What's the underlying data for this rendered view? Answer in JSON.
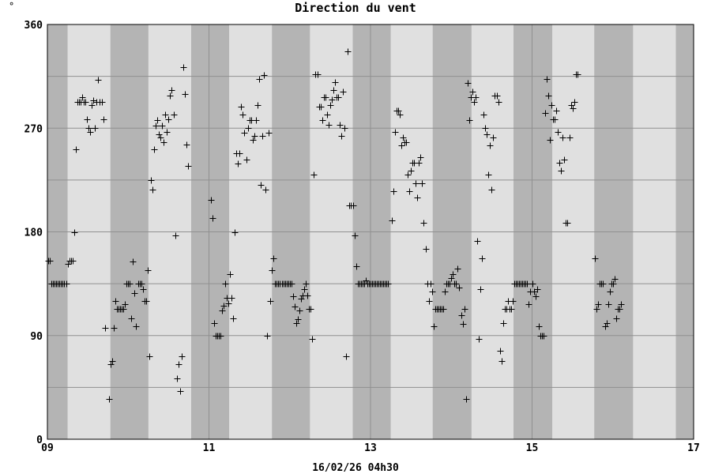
{
  "chart_data": {
    "type": "scatter",
    "title": "Direction du vent",
    "unit_mark": "°",
    "xlabel": "16/02/26 04h30",
    "ylabel": "",
    "xlim": [
      9,
      17
    ],
    "ylim": [
      0,
      360
    ],
    "x_ticks": [
      {
        "value": 9,
        "label": "09"
      },
      {
        "value": 11,
        "label": "11"
      },
      {
        "value": 13,
        "label": "13"
      },
      {
        "value": 15,
        "label": "15"
      },
      {
        "value": 17,
        "label": "17"
      }
    ],
    "y_ticks": [
      {
        "value": 0,
        "label": "0"
      },
      {
        "value": 90,
        "label": "90"
      },
      {
        "value": 180,
        "label": "180"
      },
      {
        "value": 270,
        "label": "270"
      },
      {
        "value": 360,
        "label": "360"
      }
    ],
    "y_minor_grid": [
      45,
      135,
      225,
      315
    ],
    "night_bands": [
      [
        9.0,
        9.25
      ],
      [
        9.78,
        10.25
      ],
      [
        10.78,
        11.25
      ],
      [
        11.78,
        12.25
      ],
      [
        12.78,
        13.25
      ],
      [
        13.77,
        14.25
      ],
      [
        14.77,
        15.25
      ],
      [
        15.77,
        16.25
      ],
      [
        16.78,
        17.0
      ]
    ],
    "colors": {
      "day": "#e0e0e0",
      "night": "#b4b4b4",
      "grid": "#909090",
      "marker": "#000000",
      "border": "#000000"
    },
    "grid": true,
    "marker": "+",
    "points": [
      [
        9.01,
        155
      ],
      [
        9.03,
        155
      ],
      [
        9.05,
        135
      ],
      [
        9.07,
        135
      ],
      [
        9.09,
        135
      ],
      [
        9.11,
        135
      ],
      [
        9.13,
        135
      ],
      [
        9.15,
        135
      ],
      [
        9.17,
        135
      ],
      [
        9.19,
        135
      ],
      [
        9.21,
        135
      ],
      [
        9.23,
        135
      ],
      [
        9.25,
        152
      ],
      [
        9.27,
        155
      ],
      [
        9.29,
        155
      ],
      [
        9.31,
        155
      ],
      [
        9.33,
        180
      ],
      [
        9.35,
        252
      ],
      [
        9.37,
        293
      ],
      [
        9.39,
        293
      ],
      [
        9.41,
        293
      ],
      [
        9.43,
        297
      ],
      [
        9.45,
        293
      ],
      [
        9.47,
        293
      ],
      [
        9.49,
        278
      ],
      [
        9.51,
        270
      ],
      [
        9.53,
        267
      ],
      [
        9.55,
        290
      ],
      [
        9.57,
        294
      ],
      [
        9.59,
        270
      ],
      [
        9.61,
        293
      ],
      [
        9.63,
        312
      ],
      [
        9.65,
        293
      ],
      [
        9.67,
        293
      ],
      [
        9.69,
        278
      ],
      [
        9.71,
        97
      ],
      [
        9.76,
        35
      ],
      [
        9.78,
        65
      ],
      [
        9.8,
        68
      ],
      [
        9.82,
        97
      ],
      [
        9.84,
        120
      ],
      [
        9.86,
        113
      ],
      [
        9.88,
        113
      ],
      [
        9.9,
        113
      ],
      [
        9.92,
        113
      ],
      [
        9.94,
        113
      ],
      [
        9.96,
        117
      ],
      [
        9.98,
        135
      ],
      [
        10.0,
        135
      ],
      [
        10.02,
        135
      ],
      [
        10.04,
        105
      ],
      [
        10.06,
        154
      ],
      [
        10.08,
        127
      ],
      [
        10.1,
        98
      ],
      [
        10.12,
        135
      ],
      [
        10.14,
        135
      ],
      [
        10.16,
        135
      ],
      [
        10.18,
        130
      ],
      [
        10.2,
        120
      ],
      [
        10.22,
        120
      ],
      [
        10.24,
        147
      ],
      [
        10.26,
        72
      ],
      [
        10.28,
        225
      ],
      [
        10.3,
        217
      ],
      [
        10.32,
        252
      ],
      [
        10.34,
        272
      ],
      [
        10.36,
        277
      ],
      [
        10.38,
        265
      ],
      [
        10.4,
        262
      ],
      [
        10.42,
        272
      ],
      [
        10.44,
        258
      ],
      [
        10.46,
        282
      ],
      [
        10.48,
        267
      ],
      [
        10.5,
        278
      ],
      [
        10.52,
        298
      ],
      [
        10.54,
        303
      ],
      [
        10.56,
        282
      ],
      [
        10.58,
        177
      ],
      [
        10.6,
        53
      ],
      [
        10.62,
        65
      ],
      [
        10.64,
        42
      ],
      [
        10.66,
        72
      ],
      [
        10.68,
        323
      ],
      [
        10.7,
        300
      ],
      [
        10.72,
        256
      ],
      [
        10.74,
        237
      ],
      [
        11.02,
        208
      ],
      [
        11.04,
        192
      ],
      [
        11.06,
        101
      ],
      [
        11.08,
        90
      ],
      [
        11.1,
        90
      ],
      [
        11.12,
        90
      ],
      [
        11.14,
        90
      ],
      [
        11.16,
        112
      ],
      [
        11.18,
        116
      ],
      [
        11.2,
        135
      ],
      [
        11.22,
        123
      ],
      [
        11.24,
        118
      ],
      [
        11.26,
        143
      ],
      [
        11.28,
        123
      ],
      [
        11.3,
        105
      ],
      [
        11.32,
        180
      ],
      [
        11.34,
        248
      ],
      [
        11.36,
        239
      ],
      [
        11.38,
        248
      ],
      [
        11.4,
        289
      ],
      [
        11.42,
        282
      ],
      [
        11.44,
        266
      ],
      [
        11.46,
        243
      ],
      [
        11.48,
        270
      ],
      [
        11.5,
        277
      ],
      [
        11.52,
        277
      ],
      [
        11.54,
        260
      ],
      [
        11.56,
        263
      ],
      [
        11.58,
        277
      ],
      [
        11.6,
        290
      ],
      [
        11.62,
        313
      ],
      [
        11.64,
        221
      ],
      [
        11.66,
        263
      ],
      [
        11.68,
        316
      ],
      [
        11.7,
        217
      ],
      [
        11.72,
        90
      ],
      [
        11.74,
        266
      ],
      [
        11.76,
        120
      ],
      [
        11.78,
        147
      ],
      [
        11.8,
        157
      ],
      [
        11.82,
        135
      ],
      [
        11.84,
        135
      ],
      [
        11.86,
        135
      ],
      [
        11.88,
        135
      ],
      [
        11.9,
        135
      ],
      [
        11.92,
        135
      ],
      [
        11.94,
        135
      ],
      [
        11.96,
        135
      ],
      [
        11.98,
        135
      ],
      [
        12.0,
        135
      ],
      [
        12.02,
        135
      ],
      [
        12.04,
        124
      ],
      [
        12.06,
        115
      ],
      [
        12.08,
        101
      ],
      [
        12.1,
        104
      ],
      [
        12.12,
        112
      ],
      [
        12.14,
        122
      ],
      [
        12.16,
        125
      ],
      [
        12.18,
        130
      ],
      [
        12.2,
        135
      ],
      [
        12.22,
        125
      ],
      [
        12.24,
        113
      ],
      [
        12.26,
        113
      ],
      [
        12.28,
        87
      ],
      [
        12.3,
        230
      ],
      [
        12.32,
        317
      ],
      [
        12.34,
        317
      ],
      [
        12.36,
        289
      ],
      [
        12.38,
        289
      ],
      [
        12.4,
        277
      ],
      [
        12.42,
        297
      ],
      [
        12.44,
        297
      ],
      [
        12.46,
        282
      ],
      [
        12.48,
        273
      ],
      [
        12.5,
        290
      ],
      [
        12.52,
        295
      ],
      [
        12.54,
        303
      ],
      [
        12.56,
        310
      ],
      [
        12.58,
        297
      ],
      [
        12.6,
        297
      ],
      [
        12.62,
        273
      ],
      [
        12.64,
        263
      ],
      [
        12.66,
        302
      ],
      [
        12.68,
        270
      ],
      [
        12.7,
        72
      ],
      [
        12.72,
        337
      ],
      [
        12.74,
        203
      ],
      [
        12.76,
        203
      ],
      [
        12.78,
        203
      ],
      [
        12.8,
        177
      ],
      [
        12.82,
        150
      ],
      [
        12.84,
        135
      ],
      [
        12.86,
        135
      ],
      [
        12.88,
        135
      ],
      [
        12.9,
        135
      ],
      [
        12.92,
        135
      ],
      [
        12.94,
        138
      ],
      [
        12.96,
        135
      ],
      [
        12.98,
        135
      ],
      [
        13.0,
        135
      ],
      [
        13.02,
        135
      ],
      [
        13.04,
        135
      ],
      [
        13.06,
        135
      ],
      [
        13.08,
        135
      ],
      [
        13.1,
        135
      ],
      [
        13.12,
        135
      ],
      [
        13.14,
        135
      ],
      [
        13.16,
        135
      ],
      [
        13.18,
        135
      ],
      [
        13.2,
        135
      ],
      [
        13.22,
        135
      ],
      [
        13.26,
        190
      ],
      [
        13.28,
        215
      ],
      [
        13.3,
        267
      ],
      [
        13.32,
        285
      ],
      [
        13.34,
        285
      ],
      [
        13.36,
        282
      ],
      [
        13.38,
        255
      ],
      [
        13.4,
        262
      ],
      [
        13.42,
        258
      ],
      [
        13.44,
        258
      ],
      [
        13.46,
        230
      ],
      [
        13.48,
        215
      ],
      [
        13.5,
        233
      ],
      [
        13.52,
        240
      ],
      [
        13.54,
        240
      ],
      [
        13.56,
        222
      ],
      [
        13.58,
        210
      ],
      [
        13.6,
        240
      ],
      [
        13.62,
        245
      ],
      [
        13.64,
        222
      ],
      [
        13.66,
        188
      ],
      [
        13.68,
        165
      ],
      [
        13.7,
        135
      ],
      [
        13.72,
        120
      ],
      [
        13.74,
        135
      ],
      [
        13.76,
        128
      ],
      [
        13.78,
        98
      ],
      [
        13.8,
        113
      ],
      [
        13.82,
        113
      ],
      [
        13.84,
        113
      ],
      [
        13.86,
        113
      ],
      [
        13.88,
        113
      ],
      [
        13.9,
        113
      ],
      [
        13.92,
        128
      ],
      [
        13.94,
        135
      ],
      [
        13.96,
        135
      ],
      [
        13.98,
        135
      ],
      [
        14.0,
        140
      ],
      [
        14.02,
        143
      ],
      [
        14.04,
        135
      ],
      [
        14.06,
        135
      ],
      [
        14.08,
        148
      ],
      [
        14.1,
        132
      ],
      [
        14.12,
        108
      ],
      [
        14.14,
        100
      ],
      [
        14.16,
        113
      ],
      [
        14.18,
        35
      ],
      [
        14.2,
        309
      ],
      [
        14.22,
        277
      ],
      [
        14.24,
        297
      ],
      [
        14.26,
        302
      ],
      [
        14.28,
        293
      ],
      [
        14.3,
        297
      ],
      [
        14.32,
        172
      ],
      [
        14.34,
        87
      ],
      [
        14.36,
        130
      ],
      [
        14.38,
        157
      ],
      [
        14.4,
        282
      ],
      [
        14.42,
        270
      ],
      [
        14.44,
        265
      ],
      [
        14.46,
        230
      ],
      [
        14.48,
        255
      ],
      [
        14.5,
        217
      ],
      [
        14.52,
        262
      ],
      [
        14.54,
        298
      ],
      [
        14.56,
        298
      ],
      [
        14.58,
        293
      ],
      [
        14.6,
        77
      ],
      [
        14.62,
        68
      ],
      [
        14.64,
        101
      ],
      [
        14.66,
        113
      ],
      [
        14.68,
        113
      ],
      [
        14.7,
        120
      ],
      [
        14.72,
        113
      ],
      [
        14.74,
        113
      ],
      [
        14.76,
        120
      ],
      [
        14.78,
        135
      ],
      [
        14.8,
        135
      ],
      [
        14.82,
        135
      ],
      [
        14.84,
        135
      ],
      [
        14.86,
        135
      ],
      [
        14.88,
        135
      ],
      [
        14.9,
        135
      ],
      [
        14.92,
        135
      ],
      [
        14.94,
        135
      ],
      [
        14.96,
        117
      ],
      [
        14.98,
        128
      ],
      [
        15.0,
        135
      ],
      [
        15.02,
        128
      ],
      [
        15.04,
        124
      ],
      [
        15.06,
        130
      ],
      [
        15.08,
        98
      ],
      [
        15.1,
        90
      ],
      [
        15.12,
        90
      ],
      [
        15.14,
        90
      ],
      [
        15.16,
        283
      ],
      [
        15.18,
        313
      ],
      [
        15.2,
        298
      ],
      [
        15.22,
        260
      ],
      [
        15.24,
        290
      ],
      [
        15.26,
        278
      ],
      [
        15.28,
        278
      ],
      [
        15.3,
        285
      ],
      [
        15.32,
        267
      ],
      [
        15.34,
        240
      ],
      [
        15.36,
        233
      ],
      [
        15.38,
        262
      ],
      [
        15.4,
        243
      ],
      [
        15.42,
        188
      ],
      [
        15.44,
        188
      ],
      [
        15.46,
        262
      ],
      [
        15.48,
        290
      ],
      [
        15.5,
        287
      ],
      [
        15.52,
        293
      ],
      [
        15.54,
        317
      ],
      [
        15.56,
        317
      ],
      [
        15.78,
        157
      ],
      [
        15.8,
        113
      ],
      [
        15.82,
        117
      ],
      [
        15.84,
        135
      ],
      [
        15.86,
        135
      ],
      [
        15.88,
        135
      ],
      [
        15.9,
        98
      ],
      [
        15.92,
        101
      ],
      [
        15.94,
        117
      ],
      [
        15.96,
        128
      ],
      [
        15.98,
        135
      ],
      [
        16.0,
        135
      ],
      [
        16.02,
        139
      ],
      [
        16.04,
        105
      ],
      [
        16.06,
        113
      ],
      [
        16.08,
        113
      ],
      [
        16.1,
        117
      ]
    ]
  }
}
